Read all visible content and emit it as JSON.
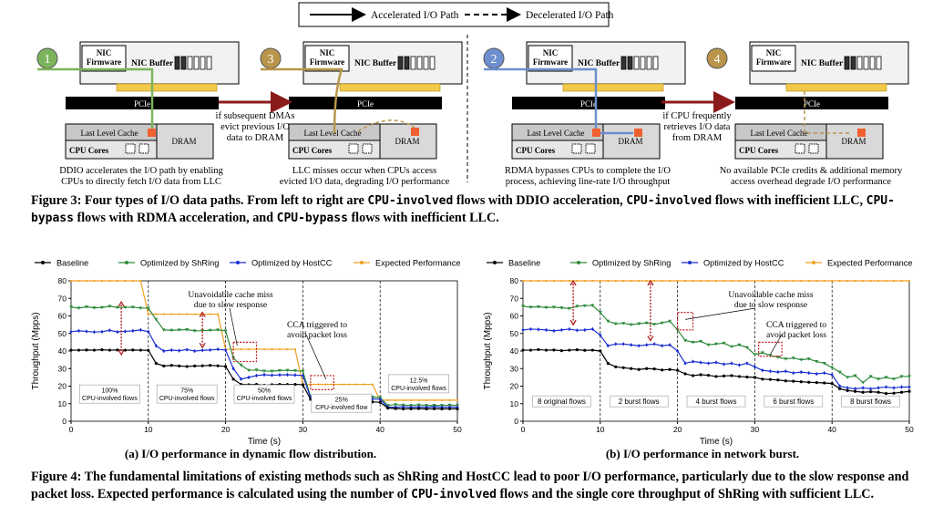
{
  "legend_top": {
    "accel": "Accelerated I/O Path",
    "decel": "Decelerated I/O Path"
  },
  "panels": [
    {
      "num": "1",
      "color": "#7cb45c",
      "nic_fw": "NIC\nFirmware",
      "nic_buf": "NIC Buffer",
      "pcie": "PCIe",
      "llc": "Last Level Cache",
      "cores": "CPU Cores",
      "dram": "DRAM",
      "caption": "DDIO accelerates the I/O path by enabling\nCPUs to directly fetch I/O data from LLC"
    },
    {
      "num": "3",
      "color": "#b8954a",
      "nic_fw": "NIC\nFirmware",
      "nic_buf": "NIC Buffer",
      "pcie": "PCIe",
      "llc": "Last Level Cache",
      "cores": "CPU Cores",
      "dram": "DRAM",
      "caption": "LLC misses occur when CPUs access\nevicted I/O data, degrading I/O performance"
    },
    {
      "num": "2",
      "color": "#6d8fd0",
      "nic_fw": "NIC\nFirmware",
      "nic_buf": "NIC Buffer",
      "pcie": "PCIe",
      "llc": "Last Level Cache",
      "cores": "CPU Cores",
      "dram": "DRAM",
      "caption": "RDMA bypasses CPUs to complete the I/O\nprocess, achieving line-rate I/O throughput"
    },
    {
      "num": "4",
      "color": "#b8954a",
      "nic_fw": "NIC\nFirmware",
      "nic_buf": "NIC Buffer",
      "pcie": "PCIe",
      "llc": "Last Level Cache",
      "cores": "CPU Cores",
      "dram": "DRAM",
      "caption": "No available PCIe credits & additional memory\naccess overhead degrade I/O performance"
    }
  ],
  "transition1": "if subsequent DMAs\nevict previous I/O\ndata to DRAM",
  "transition2": "if CPU frequently\nretrieves I/O data\nfrom DRAM",
  "fig3_caption": {
    "p1": "Figure 3: Four types of I/O data paths. From left to right are ",
    "m1": "CPU-involved",
    "p2": " flows with DDIO acceleration, ",
    "m2": "CPU-involved",
    "p3": " flows with inefficient LLC, ",
    "m3": "CPU-bypass",
    "p4": " flows with RDMA acceleration, and ",
    "m4": "CPU-bypass",
    "p5": " flows with inefficient LLC."
  },
  "chart_data": [
    {
      "type": "line",
      "xlabel": "Time (s)",
      "ylabel": "Throughput (Mpps)",
      "xlim": [
        0,
        50
      ],
      "ylim": [
        0,
        80
      ],
      "xticks": [
        0,
        10,
        20,
        30,
        40,
        50
      ],
      "yticks": [
        0,
        10,
        20,
        30,
        40,
        50,
        60,
        70,
        80
      ],
      "legend": [
        "Baseline",
        "Optimized by ShRing",
        "Optimized by HostCC",
        "Expected Performance"
      ],
      "series": [
        {
          "name": "Baseline",
          "color": "#000000",
          "values": [
            40.5,
            40.5,
            40.6,
            40.5,
            40.7,
            40.5,
            40.6,
            40.5,
            40.6,
            40.5,
            40.4,
            33.0,
            31.5,
            31.8,
            31.5,
            31.2,
            31.5,
            31.6,
            31.8,
            31.6,
            31.2,
            24.0,
            21.0,
            20.8,
            21.0,
            20.5,
            20.8,
            21.0,
            20.9,
            21.0,
            20.8,
            12.5,
            10.8,
            11.0,
            11.2,
            10.6,
            11.0,
            10.8,
            11.0,
            11.0,
            10.8,
            7.5,
            7.2,
            7.0,
            7.1,
            7.2,
            7.0,
            7.1,
            7.0,
            7.1,
            7.0
          ]
        },
        {
          "name": "Optimized by ShRing",
          "color": "#2e8b3a",
          "values": [
            65.0,
            64.5,
            65.2,
            64.6,
            64.8,
            65.5,
            64.8,
            64.9,
            65.0,
            64.5,
            64.4,
            58.0,
            52.0,
            51.8,
            52.0,
            52.2,
            51.5,
            51.6,
            51.8,
            52.0,
            51.5,
            36.0,
            32.0,
            29.0,
            29.2,
            28.6,
            28.5,
            28.9,
            29.0,
            28.8,
            28.5,
            14.0,
            14.0,
            14.2,
            14.0,
            13.8,
            14.0,
            14.1,
            14.0,
            13.8,
            13.5,
            9.0,
            9.5,
            9.2,
            9.0,
            9.3,
            9.0,
            9.1,
            9.0,
            9.2,
            9.0
          ]
        },
        {
          "name": "Optimized by HostCC",
          "color": "#1c2fd0",
          "values": [
            51.0,
            51.5,
            51.2,
            50.8,
            51.0,
            51.8,
            50.9,
            51.2,
            51.5,
            52.0,
            51.0,
            43.0,
            40.0,
            40.5,
            40.2,
            40.8,
            40.0,
            40.4,
            40.6,
            41.0,
            40.5,
            30.0,
            24.0,
            25.0,
            26.0,
            26.5,
            26.2,
            26.4,
            26.5,
            26.3,
            26.0,
            13.5,
            12.5,
            12.8,
            13.0,
            12.6,
            12.8,
            13.0,
            12.9,
            12.7,
            12.5,
            8.0,
            8.0,
            8.2,
            8.0,
            8.1,
            8.0,
            8.2,
            8.0,
            8.1,
            8.0
          ]
        },
        {
          "name": "Expected Performance",
          "color": "#f0a020",
          "values": [
            80,
            80,
            80,
            80,
            80,
            80,
            80,
            80,
            80,
            80,
            61,
            61,
            61,
            61,
            61,
            61,
            61,
            61,
            61,
            61,
            41,
            41,
            41,
            41,
            41,
            41,
            41,
            41,
            41,
            41,
            21,
            21,
            21,
            21,
            21,
            21,
            21,
            21,
            21,
            21,
            12,
            12,
            12,
            12,
            12,
            12,
            12,
            12,
            12,
            12,
            12
          ]
        }
      ],
      "phase_labels": [
        "100%\nCPU-involved flows",
        "75%\nCPU-involved flows",
        "50%\nCPU-involved flows",
        "25%\nCPU-involved flow",
        "12.5%\nCPU-involved flows"
      ],
      "annotations": [
        "Unavoidable cache miss\ndue to slow response",
        "CCA triggered to\navoid packet loss"
      ],
      "subcaption": "(a) I/O performance in dynamic flow distribution."
    },
    {
      "type": "line",
      "xlabel": "Time (s)",
      "ylabel": "Throughput (Mpps)",
      "xlim": [
        0,
        50
      ],
      "ylim": [
        0,
        80
      ],
      "xticks": [
        0,
        10,
        20,
        30,
        40,
        50
      ],
      "yticks": [
        0,
        10,
        20,
        30,
        40,
        50,
        60,
        70,
        80
      ],
      "legend": [
        "Baseline",
        "Optimized by ShRing",
        "Optimized by HostCC",
        "Expected Performance"
      ],
      "series": [
        {
          "name": "Baseline",
          "color": "#000000",
          "values": [
            40.5,
            40.5,
            40.8,
            40.5,
            40.6,
            40.2,
            40.5,
            40.7,
            40.4,
            40.5,
            40.0,
            33.0,
            31.0,
            30.5,
            30.0,
            29.5,
            30.0,
            29.8,
            29.2,
            29.5,
            29.0,
            27.0,
            26.0,
            26.5,
            26.2,
            25.5,
            25.8,
            26.0,
            25.5,
            25.2,
            25.0,
            24.0,
            23.8,
            23.5,
            23.0,
            22.8,
            22.5,
            22.2,
            22.0,
            21.8,
            21.5,
            18.5,
            17.5,
            17.0,
            16.5,
            16.8,
            16.5,
            15.8,
            16.0,
            16.5,
            17.0
          ]
        },
        {
          "name": "Optimized by ShRing",
          "color": "#2e8b3a",
          "values": [
            65.5,
            65.0,
            65.2,
            64.8,
            65.0,
            64.6,
            64.2,
            65.5,
            65.8,
            66.0,
            62.0,
            57.0,
            55.5,
            55.8,
            55.0,
            55.6,
            56.0,
            55.2,
            56.0,
            57.0,
            52.0,
            46.0,
            45.0,
            45.5,
            43.5,
            44.0,
            44.5,
            42.5,
            43.5,
            42.0,
            38.0,
            39.0,
            37.5,
            36.5,
            35.5,
            36.0,
            35.0,
            35.5,
            34.0,
            33.0,
            30.5,
            28.0,
            25.0,
            26.0,
            22.0,
            25.5,
            24.0,
            25.0,
            24.0,
            25.5,
            25.5
          ]
        },
        {
          "name": "Optimized by HostCC",
          "color": "#1c2fd0",
          "values": [
            52.0,
            52.5,
            52.3,
            52.0,
            51.5,
            52.0,
            52.5,
            51.8,
            52.0,
            52.5,
            49.0,
            43.0,
            44.0,
            44.0,
            43.5,
            43.0,
            43.5,
            44.0,
            43.0,
            43.5,
            40.0,
            33.0,
            34.0,
            33.5,
            33.0,
            33.5,
            32.5,
            33.0,
            32.0,
            33.0,
            31.0,
            29.0,
            28.5,
            28.0,
            28.5,
            27.5,
            28.0,
            27.5,
            27.0,
            27.5,
            26.5,
            20.0,
            19.0,
            18.5,
            19.0,
            18.5,
            19.0,
            19.5,
            19.0,
            19.5,
            19.5
          ]
        },
        {
          "name": "Expected Performance",
          "color": "#f0a020",
          "values": [
            80,
            80,
            80,
            80,
            80,
            80,
            80,
            80,
            80,
            80,
            80,
            80,
            80,
            80,
            80,
            80,
            80,
            80,
            80,
            80,
            80,
            80,
            80,
            80,
            80,
            80,
            80,
            80,
            80,
            80,
            80,
            80,
            80,
            80,
            80,
            80,
            80,
            80,
            80,
            80,
            80,
            80,
            80,
            80,
            80,
            80,
            80,
            80,
            80,
            80,
            80
          ]
        }
      ],
      "phase_labels": [
        "8 original flows",
        "2 burst flows",
        "4 burst flows",
        "6 burst flows",
        "8 burst flows"
      ],
      "annotations": [
        "Unavoidable cache miss\ndue to slow response",
        "CCA triggered to\navoid packet loss"
      ],
      "subcaption": "(b) I/O performance in network burst."
    }
  ],
  "fig4_caption": {
    "p1": "Figure 4: The fundamental limitations of existing methods such as ShRing and HostCC lead to poor I/O performance, particularly due to the slow response and packet loss. Expected performance is calculated using the number of ",
    "m1": "CPU-involved",
    "p2": " flows and the single core throughput of ShRing with sufficient LLC."
  }
}
